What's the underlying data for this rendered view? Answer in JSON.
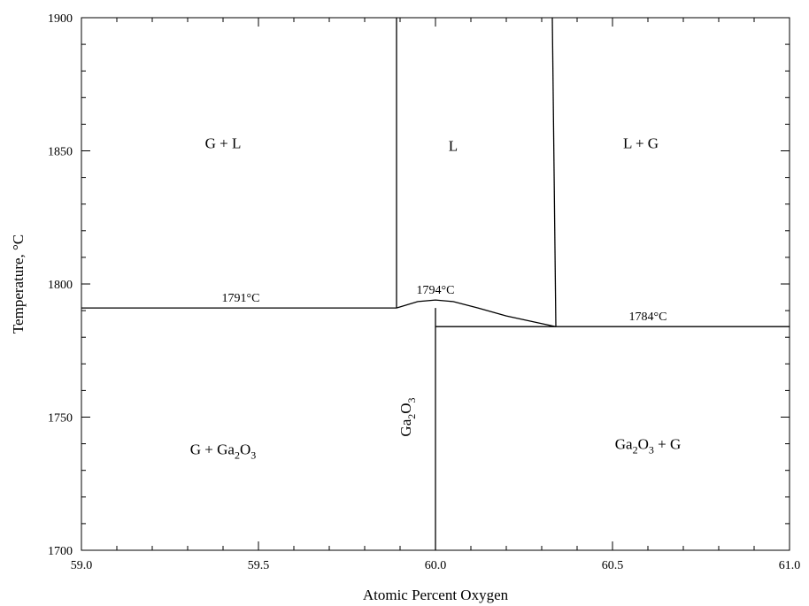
{
  "chart_data": {
    "type": "phase-diagram",
    "xlabel": "Atomic Percent Oxygen",
    "ylabel": "Temperature, °C",
    "xlim": [
      59.0,
      61.0
    ],
    "ylim": [
      1700,
      1900
    ],
    "x_ticks": [
      {
        "value": 59.0,
        "label": "59.0"
      },
      {
        "value": 59.5,
        "label": "59.5"
      },
      {
        "value": 60.0,
        "label": "60.0"
      },
      {
        "value": 60.5,
        "label": "60.5"
      },
      {
        "value": 61.0,
        "label": "61.0"
      }
    ],
    "y_ticks": [
      {
        "value": 1700,
        "label": "1700"
      },
      {
        "value": 1750,
        "label": "1750"
      },
      {
        "value": 1800,
        "label": "1800"
      },
      {
        "value": 1850,
        "label": "1850"
      },
      {
        "value": 1900,
        "label": "1900"
      }
    ],
    "phase_boundaries": [
      {
        "name": "left-liquidus",
        "points": [
          [
            59.89,
            1900
          ],
          [
            59.89,
            1791
          ]
        ]
      },
      {
        "name": "right-liquidus",
        "points": [
          [
            60.33,
            1900
          ],
          [
            60.34,
            1784
          ]
        ]
      },
      {
        "name": "eutectic-left",
        "points": [
          [
            59.0,
            1791
          ],
          [
            59.89,
            1791
          ]
        ]
      },
      {
        "name": "eutectic-right",
        "points": [
          [
            60.0,
            1784
          ],
          [
            61.0,
            1784
          ]
        ]
      },
      {
        "name": "ga2o3-line",
        "points": [
          [
            60.0,
            1700
          ],
          [
            60.0,
            1791
          ]
        ]
      },
      {
        "name": "ga2o3-melting-dome",
        "points": [
          [
            59.89,
            1791
          ],
          [
            59.95,
            1793.4
          ],
          [
            60.0,
            1794
          ],
          [
            60.05,
            1793.4
          ],
          [
            60.12,
            1791
          ],
          [
            60.2,
            1788
          ],
          [
            60.34,
            1784
          ]
        ]
      }
    ],
    "temperature_labels": [
      {
        "text": "1791°C",
        "x": 59.45,
        "y": 1791
      },
      {
        "text": "1794°C",
        "x": 60.0,
        "y": 1794
      },
      {
        "text": "1784°C",
        "x": 60.6,
        "y": 1784
      }
    ],
    "regions": [
      {
        "text": "G + L",
        "x": 59.4,
        "y": 1851
      },
      {
        "text": "L",
        "x": 60.05,
        "y": 1850
      },
      {
        "text": "L + G",
        "x": 60.58,
        "y": 1851
      },
      {
        "base": "G + Ga",
        "sub1": "2",
        "mid": "O",
        "sub2": "3",
        "tail": "",
        "x": 59.4,
        "y": 1736
      },
      {
        "base": "Ga",
        "sub1": "2",
        "mid": "O",
        "sub2": "3",
        "tail": " + G",
        "x": 60.6,
        "y": 1738
      },
      {
        "base": "Ga",
        "sub1": "2",
        "mid": "O",
        "sub2": "3",
        "tail": "",
        "x": 59.93,
        "y": 1750,
        "vertical": true
      }
    ]
  }
}
